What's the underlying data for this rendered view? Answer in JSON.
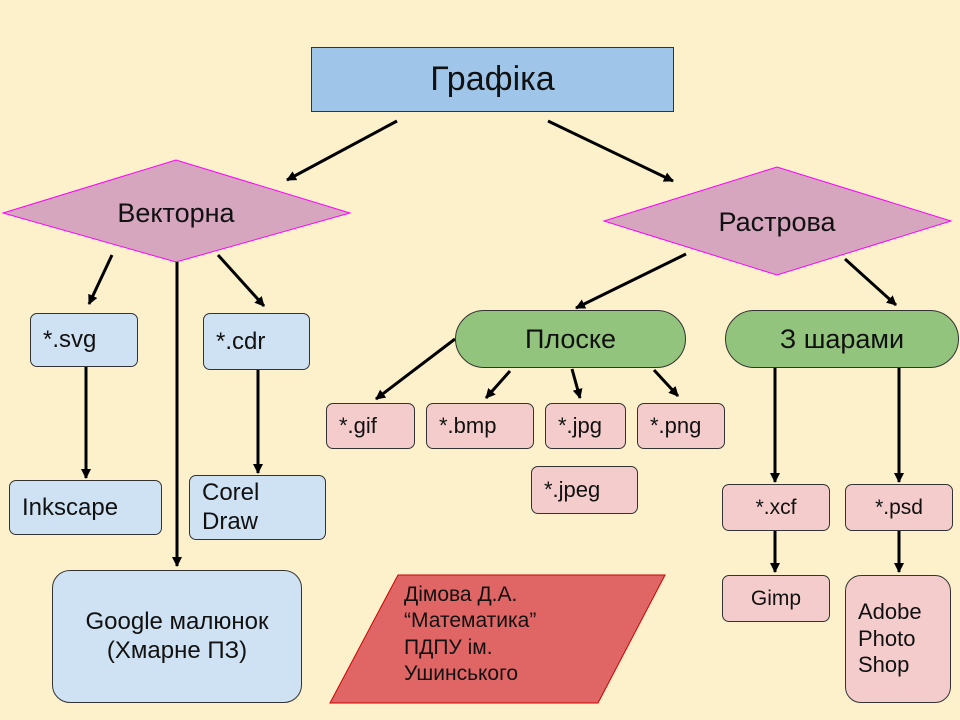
{
  "title": "Графіка",
  "vector": {
    "label": "Векторна",
    "formats": [
      {
        "name": "*.svg",
        "tool": "Inkscape"
      },
      {
        "name": "*.cdr",
        "tool": "Corel\nDraw"
      }
    ],
    "online_tool": "Google малюнок\n(Хмарне ПЗ)"
  },
  "raster": {
    "label": "Растрова",
    "flat": {
      "label": "Плоске",
      "formats": [
        "*.gif",
        "*.bmp",
        "*.jpg",
        "*.png",
        "*.jpeg"
      ]
    },
    "layered": {
      "label": "З шарами",
      "formats": [
        {
          "name": "*.xcf",
          "tool": "Gimp"
        },
        {
          "name": "*.psd",
          "tool": "Adobe\nPhoto\nShop"
        }
      ]
    }
  },
  "author_note": "Дімова Д.А.\n“Математика”\nПДПУ ім.\nУшинського",
  "colors": {
    "background": "#fdf1cc",
    "title_fill": "#9fc5e8",
    "diamond_fill": "#d5a6bd",
    "diamond_stroke": "#ff00ff",
    "blue_box": "#cfe2f3",
    "pink_box": "#f4cccc",
    "green_pill": "#93c47d",
    "author_fill": "#e06666"
  }
}
